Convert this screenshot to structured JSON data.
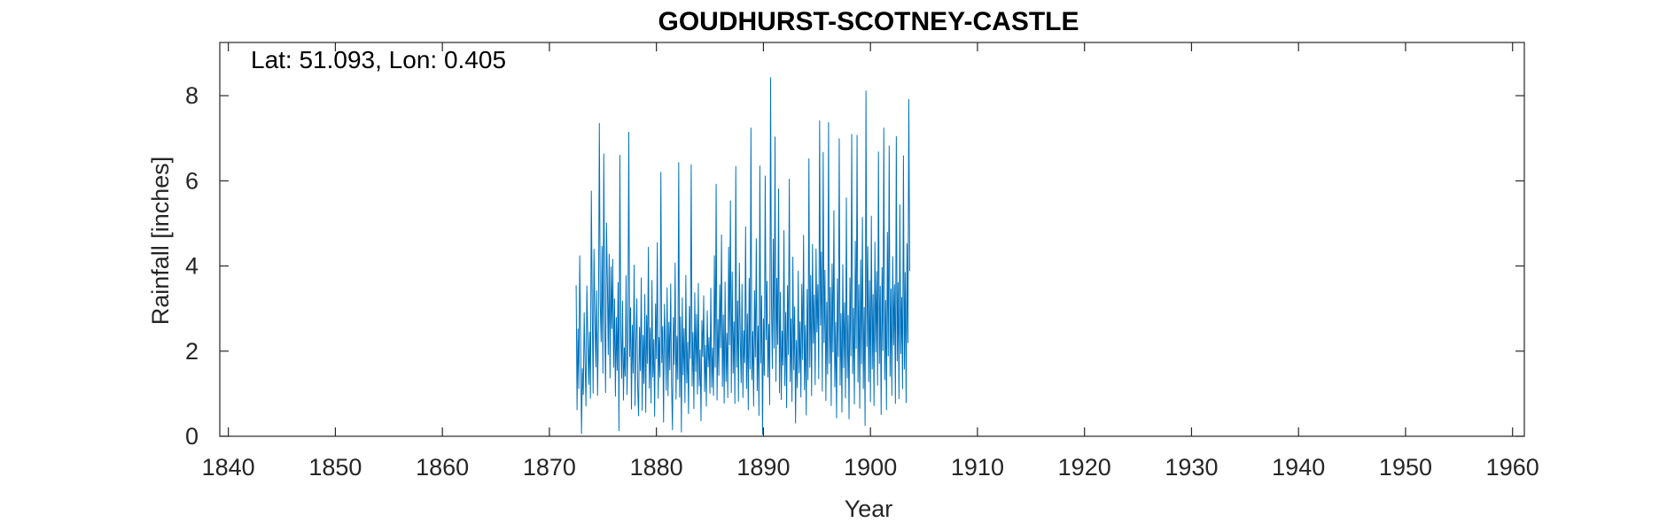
{
  "chart_data": {
    "type": "line",
    "title": "GOUDHURST-SCOTNEY-CASTLE",
    "xlabel": "Year",
    "ylabel": "Rainfall [inches]",
    "annotation": "Lat: 51.093, Lon: 0.405",
    "xlim": [
      1839.2,
      1961.1
    ],
    "ylim": [
      0,
      9.25
    ],
    "x_ticks": [
      1840,
      1850,
      1860,
      1870,
      1880,
      1890,
      1900,
      1910,
      1920,
      1930,
      1940,
      1950,
      1960
    ],
    "y_ticks": [
      0,
      2,
      4,
      6,
      8
    ],
    "grid": false,
    "line_color": "#0072BD",
    "series": [
      {
        "x_start": 1872.5,
        "x_step": 0.08333,
        "values_note": "monthly rainfall 1872.5–1960.6",
        "values": [
          3.55,
          0.62,
          2.52,
          1.12,
          4.24,
          2.28,
          0.06,
          1.59,
          0.98,
          2.9,
          1.74,
          0.71,
          3.53,
          2.37,
          1.22,
          2.45,
          0.89,
          5.76,
          3.11,
          1.01,
          4.39,
          2.87,
          1.63,
          3.42,
          0.96,
          2.61,
          7.35,
          3.17,
          2.22,
          4.46,
          1.48,
          6.63,
          2.72,
          1.03,
          5.01,
          3.64,
          1.92,
          4.28,
          1.37,
          3.98,
          2.53,
          4.16,
          1.62,
          3.23,
          0.94,
          2.79,
          1.55,
          3.61,
          0.13,
          6.6,
          2.44,
          1.36,
          3.18,
          0.85,
          2.08,
          1.41,
          3.77,
          0.98,
          2.23,
          7.14,
          1.87,
          3.02,
          0.64,
          2.61,
          1.48,
          4.02,
          0.72,
          2.19,
          3.23,
          1.12,
          0.48,
          2.56,
          1.54,
          3.72,
          0.61,
          2.37,
          1.24,
          3.33,
          0.56,
          2.84,
          1.71,
          4.44,
          1.13,
          2.54,
          0.78,
          3.66,
          1.39,
          2.27,
          0.47,
          3.11,
          1.82,
          4.55,
          0.89,
          2.32,
          1.39,
          6.2,
          1.73,
          2.58,
          0.33,
          3.1,
          2.2,
          1.08,
          3.49,
          0.95,
          2.68,
          1.56,
          3.58,
          1.21,
          0.15,
          2.79,
          1.68,
          4.07,
          0.87,
          2.35,
          1.34,
          6.43,
          0.92,
          2.81,
          0.1,
          3.25,
          1.44,
          2.53,
          0.79,
          3.78,
          1.25,
          2.21,
          0.53,
          3.05,
          1.83,
          6.38,
          1.18,
          2.44,
          0.65,
          3.37,
          1.52,
          2.86,
          0.99,
          3.59,
          1.18,
          2.03,
          0.36,
          2.72,
          1.87,
          3.3,
          1.05,
          2.14,
          0.71,
          2.95,
          1.63,
          2.32,
          1.01,
          3.48,
          1.15,
          2.07,
          0.96,
          4.24,
          1.62,
          5.92,
          0.85,
          2.74,
          1.43,
          3.56,
          2.08,
          4.73,
          1.17,
          2.85,
          0.78,
          3.62,
          1.29,
          2.42,
          0.91,
          4.44,
          2.15,
          5.53,
          1.03,
          3.86,
          1.48,
          2.69,
          0.77,
          6.34,
          1.62,
          3.18,
          0.82,
          4.07,
          2.31,
          1.26,
          3.57,
          0.91,
          2.48,
          1.73,
          4.92,
          1.12,
          2.87,
          0.62,
          3.71,
          1.58,
          7.24,
          1.33,
          2.46,
          0.71,
          3.42,
          1.86,
          4.64,
          1.07,
          2.59,
          0.49,
          6.35,
          1.72,
          3.3,
          0.05,
          2.76,
          1.43,
          6.11,
          2.27,
          3.64,
          1.39,
          2.63,
          0.74,
          8.42,
          3.16,
          1.59,
          4.63,
          2.07,
          7.03,
          1.29,
          3.71,
          2.16,
          5.81,
          1.02,
          3.38,
          0.86,
          2.47,
          1.67,
          4.83,
          1.19,
          2.91,
          0.67,
          3.54,
          1.92,
          6.04,
          1.28,
          2.76,
          0.82,
          4.21,
          1.56,
          3.04,
          0.31,
          2.25,
          1.14,
          3.88,
          1.49,
          2.69,
          0.92,
          3.57,
          1.8,
          4.72,
          1.09,
          2.61,
          0.5,
          3.45,
          1.33,
          6.52,
          1.62,
          3.78,
          0.95,
          4.51,
          2.18,
          3.32,
          1.21,
          4.4,
          2.45,
          3.56,
          1.35,
          7.41,
          2.61,
          4.33,
          1.06,
          6.67,
          2.2,
          3.9,
          0.84,
          3.15,
          1.46,
          7.37,
          1.71,
          3.5,
          0.72,
          4.05,
          1.98,
          5.3,
          1.16,
          2.68,
          0.43,
          3.7,
          1.87,
          6.99,
          1.2,
          2.88,
          0.57,
          4.03,
          1.61,
          3.14,
          0.9,
          5.6,
          1.37,
          2.84,
          0.41,
          3.72,
          1.89,
          7.09,
          1.47,
          3.01,
          0.76,
          4.58,
          2.06,
          7.07,
          1.27,
          3.56,
          0.66,
          4.14,
          1.7,
          5.14,
          1.12,
          3.03,
          0.25,
          8.11,
          2.11,
          4.45,
          1.28,
          3.66,
          0.81,
          5.17,
          1.58,
          3.33,
          0.72,
          4.56,
          1.98,
          3.87,
          1.2,
          6.68,
          1.71,
          3.52,
          0.51,
          3.96,
          2.02,
          7.24,
          1.33,
          3.19,
          0.62,
          4.79,
          1.89,
          6.82,
          1.41,
          3.46,
          0.96,
          4.22,
          2.14,
          3.56,
          0.77,
          7.04,
          1.77,
          3.61,
          0.88,
          5.44,
          1.94,
          3.26,
          1.12,
          6.59,
          1.58,
          3.85,
          0.79,
          4.52,
          2.2,
          7.91,
          3.88
        ]
      }
    ]
  }
}
